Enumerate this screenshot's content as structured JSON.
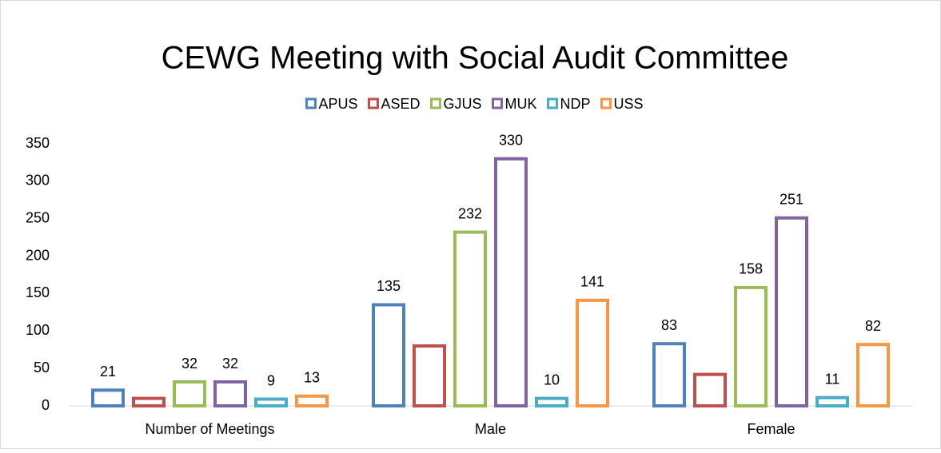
{
  "chart_data": {
    "type": "bar",
    "title": "CEWG Meeting with Social Audit Committee",
    "categories": [
      "Number of Meetings",
      "Male",
      "Female"
    ],
    "series": [
      {
        "name": "APUS",
        "color": "#4f81bd",
        "values": [
          21,
          135,
          83
        ],
        "data_labels": true
      },
      {
        "name": "ASED",
        "color": "#c0504d",
        "values": [
          10,
          80,
          42
        ],
        "data_labels": false
      },
      {
        "name": "GJUS",
        "color": "#9bbb59",
        "values": [
          32,
          232,
          158
        ],
        "data_labels": true
      },
      {
        "name": "MUK",
        "color": "#8064a2",
        "values": [
          32,
          330,
          251
        ],
        "data_labels": true
      },
      {
        "name": "NDP",
        "color": "#4bacc6",
        "values": [
          9,
          10,
          11
        ],
        "data_labels": true
      },
      {
        "name": "USS",
        "color": "#f79646",
        "values": [
          13,
          141,
          82
        ],
        "data_labels": true
      }
    ],
    "ylim": [
      0,
      350
    ],
    "yticks": [
      0,
      50,
      100,
      150,
      200,
      250,
      300,
      350
    ],
    "grid": false,
    "legend": "top"
  }
}
